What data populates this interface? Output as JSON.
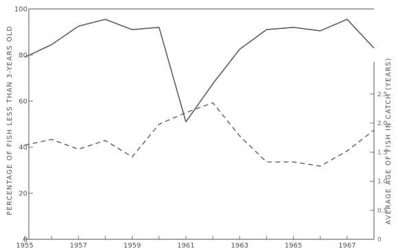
{
  "chart_data": {
    "type": "line",
    "x": [
      1955,
      1956,
      1957,
      1958,
      1959,
      1960,
      1961,
      1962,
      1963,
      1964,
      1965,
      1966,
      1967,
      1968
    ],
    "x_tick_labels": [
      "1955",
      "1957",
      "1959",
      "1961",
      "1963",
      "1965",
      "1967"
    ],
    "xlim": [
      1955,
      1968
    ],
    "ylabel": "PERCENTAGE OF FISH LESS THAN 3-YEARS OLD",
    "ylim": [
      0,
      100
    ],
    "y_tick_labels": [
      "0",
      "20",
      "40",
      "60",
      "80",
      "100"
    ],
    "y2label": "AVERAGE AGE OF FISH IN CATCH (YEARS)",
    "y2lim": [
      0,
      4.0
    ],
    "y2_tick_labels": [
      "0",
      "0.5",
      "1.0",
      "1.5",
      "2.0",
      "2.5"
    ],
    "grid": false,
    "series": [
      {
        "axis": "left",
        "style": "solid",
        "values": [
          79,
          84.5,
          92.5,
          95.5,
          91,
          92,
          51,
          67.5,
          82.5,
          91,
          92,
          90.5,
          95.5,
          83
        ]
      },
      {
        "axis": "right",
        "style": "dashed",
        "values": [
          1.62,
          1.72,
          1.55,
          1.7,
          1.42,
          1.98,
          2.18,
          2.35,
          1.78,
          1.33,
          1.33,
          1.26,
          1.52,
          1.88
        ]
      }
    ]
  }
}
